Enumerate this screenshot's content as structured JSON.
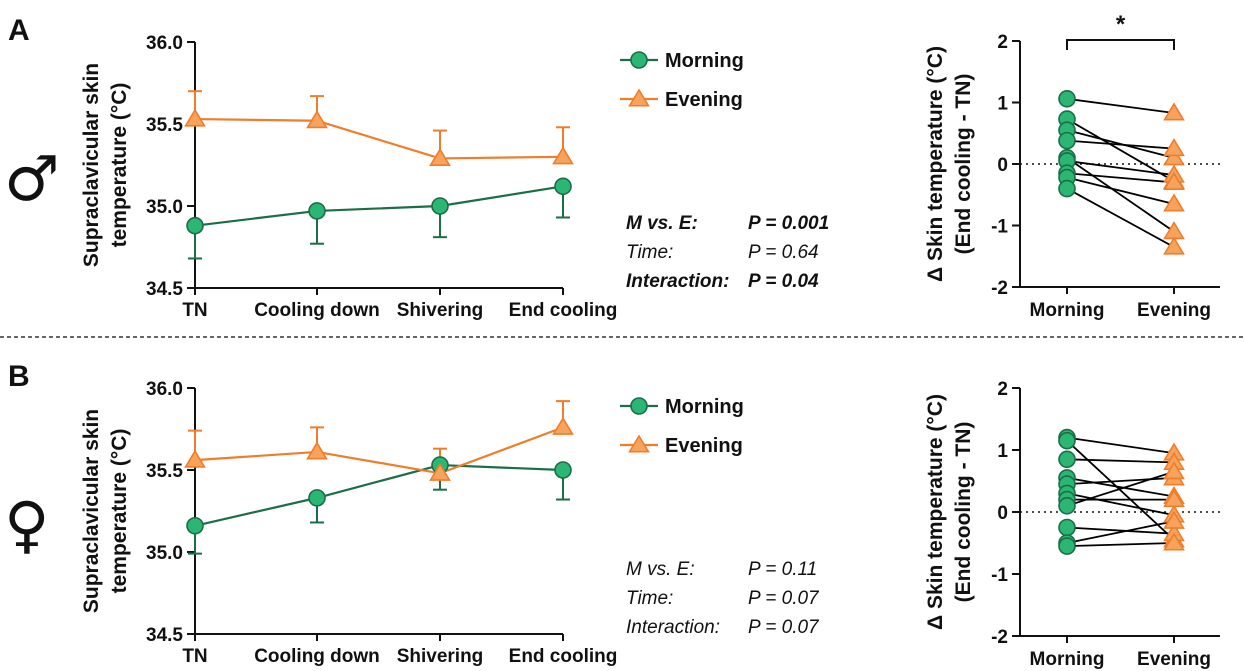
{
  "colors": {
    "morning_fill": "#2bb673",
    "morning_line": "#1b6e45",
    "evening_fill": "#f7a35c",
    "evening_line": "#f07d2b",
    "axis": "#111111",
    "paired_line": "#000000"
  },
  "legend": {
    "morning": "Morning",
    "evening": "Evening"
  },
  "chart_data": [
    {
      "id": "A-left",
      "type": "line",
      "panel_letter": "A",
      "sex_symbol": "♂",
      "ylabel_line1": "Supraclavicular skin",
      "ylabel_line2": "temperature (°C)",
      "categories": [
        "TN",
        "Cooling down",
        "Shivering",
        "End cooling"
      ],
      "ylim": [
        34.5,
        36.0
      ],
      "yticks": [
        "34.5",
        "35.0",
        "35.5",
        "36.0"
      ],
      "error_bars": "one-sided",
      "series": [
        {
          "name": "Morning",
          "values": [
            34.88,
            34.97,
            35.0,
            35.12
          ],
          "err": [
            0.2,
            0.2,
            0.19,
            0.19
          ]
        },
        {
          "name": "Evening",
          "values": [
            35.53,
            35.52,
            35.29,
            35.3
          ],
          "err": [
            0.17,
            0.15,
            0.17,
            0.18
          ]
        }
      ],
      "stats": [
        {
          "label": "M vs. E:",
          "value": "P = 0.001",
          "bold": true
        },
        {
          "label": "Time:",
          "value": "P = 0.64",
          "bold": false
        },
        {
          "label": "Interaction:",
          "value": "P = 0.04",
          "bold": true
        }
      ]
    },
    {
      "id": "A-right",
      "type": "scatter",
      "ylabel_line1": "Δ Skin temperature  (°C)",
      "ylabel_line2": "(End cooling - TN)",
      "categories": [
        "Morning",
        "Evening"
      ],
      "ylim": [
        -2,
        2
      ],
      "yticks": [
        "-2",
        "-1",
        "0",
        "1",
        "2"
      ],
      "reference_line": 0,
      "significance": "*",
      "pairs": [
        [
          1.06,
          0.83
        ],
        [
          0.73,
          -0.28
        ],
        [
          0.55,
          0.1
        ],
        [
          0.38,
          0.25
        ],
        [
          0.1,
          -1.1
        ],
        [
          0.05,
          -0.18
        ],
        [
          -0.15,
          -0.3
        ],
        [
          -0.22,
          -0.65
        ],
        [
          -0.4,
          -1.35
        ]
      ]
    },
    {
      "id": "B-left",
      "type": "line",
      "panel_letter": "B",
      "sex_symbol": "♀",
      "ylabel_line1": "Supraclavicular skin",
      "ylabel_line2": "temperature (°C)",
      "categories": [
        "TN",
        "Cooling down",
        "Shivering",
        "End cooling"
      ],
      "ylim": [
        34.5,
        36.0
      ],
      "yticks": [
        "34.5",
        "35.0",
        "35.5",
        "36.0"
      ],
      "error_bars": "one-sided",
      "series": [
        {
          "name": "Morning",
          "values": [
            35.16,
            35.33,
            35.53,
            35.5
          ],
          "err": [
            0.17,
            0.15,
            0.15,
            0.18
          ]
        },
        {
          "name": "Evening",
          "values": [
            35.56,
            35.61,
            35.48,
            35.76
          ],
          "err": [
            0.18,
            0.15,
            0.15,
            0.16
          ]
        }
      ],
      "stats": [
        {
          "label": "M vs. E:",
          "value": "P = 0.11",
          "bold": false
        },
        {
          "label": "Time:",
          "value": "P = 0.07",
          "bold": false
        },
        {
          "label": "Interaction:",
          "value": "P = 0.07",
          "bold": false
        }
      ]
    },
    {
      "id": "B-right",
      "type": "scatter",
      "ylabel_line1": "Δ Skin temperature  (°C)",
      "ylabel_line2": "(End cooling - TN)",
      "categories": [
        "Morning",
        "Evening"
      ],
      "ylim": [
        -2,
        2
      ],
      "yticks": [
        "-2",
        "-1",
        "0",
        "1",
        "2"
      ],
      "reference_line": 0,
      "pairs": [
        [
          1.2,
          0.95
        ],
        [
          1.15,
          -0.45
        ],
        [
          0.85,
          0.8
        ],
        [
          0.55,
          0.25
        ],
        [
          0.45,
          0.55
        ],
        [
          0.3,
          -0.05
        ],
        [
          0.2,
          0.2
        ],
        [
          0.1,
          0.65
        ],
        [
          -0.25,
          -0.35
        ],
        [
          -0.5,
          -0.15
        ],
        [
          -0.55,
          -0.5
        ]
      ]
    }
  ]
}
